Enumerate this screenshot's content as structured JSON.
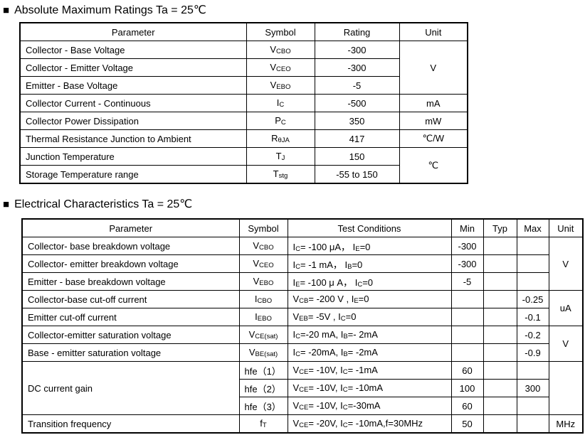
{
  "colors": {
    "background": "#ffffff",
    "text": "#000000",
    "table_border": "#000000"
  },
  "sections": [
    {
      "bullet": "■",
      "title": "Absolute Maximum Ratings Ta = 25℃",
      "table": {
        "columns": [
          "Parameter",
          "Symbol",
          "Rating",
          "Unit"
        ],
        "rows": [
          [
            {
              "text": "Collector - Base Voltage",
              "align": "left"
            },
            {
              "text": "V{CBO}"
            },
            {
              "text": "-300"
            },
            {
              "text": "V",
              "rowspan": 3
            }
          ],
          [
            {
              "text": "Collector - Emitter Voltage",
              "align": "left"
            },
            {
              "text": "V{CEO}"
            },
            {
              "text": "-300"
            }
          ],
          [
            {
              "text": "Emitter - Base Voltage",
              "align": "left"
            },
            {
              "text": "V{EBO}"
            },
            {
              "text": "-5"
            }
          ],
          [
            {
              "text": "Collector Current  - Continuous",
              "align": "left"
            },
            {
              "text": "I{C}"
            },
            {
              "text": "-500"
            },
            {
              "text": "mA"
            }
          ],
          [
            {
              "text": "Collector Power Dissipation",
              "align": "left"
            },
            {
              "text": "P{C}"
            },
            {
              "text": "350"
            },
            {
              "text": "mW"
            }
          ],
          [
            {
              "text": "Thermal Resistance Junction to Ambient",
              "align": "left"
            },
            {
              "text": "R{θJA}"
            },
            {
              "text": "417"
            },
            {
              "text": "℃/W"
            }
          ],
          [
            {
              "text": "Junction Temperature",
              "align": "left"
            },
            {
              "text": "T{J}"
            },
            {
              "text": "150"
            },
            {
              "text": "℃",
              "rowspan": 2
            }
          ],
          [
            {
              "text": "Storage Temperature range",
              "align": "left"
            },
            {
              "text": "T{stg}"
            },
            {
              "text": "-55 to 150"
            }
          ]
        ]
      }
    },
    {
      "bullet": "■",
      "title": "Electrical Characteristics Ta = 25℃",
      "table": {
        "columns": [
          "Parameter",
          "Symbol",
          "Test Conditions",
          "Min",
          "Typ",
          "Max",
          "Unit"
        ],
        "rows": [
          [
            {
              "text": "Collector- base breakdown voltage",
              "align": "left"
            },
            {
              "text": "V{CBO}"
            },
            {
              "text": "I{C}= -100 μA， I{E}=0",
              "align": "left"
            },
            {
              "text": "-300"
            },
            {
              "text": ""
            },
            {
              "text": ""
            },
            {
              "text": "V",
              "rowspan": 3
            }
          ],
          [
            {
              "text": "Collector- emitter breakdown voltage",
              "align": "left"
            },
            {
              "text": "V{CEO}"
            },
            {
              "text": "I{C}= -1 mA， I{B}=0",
              "align": "left"
            },
            {
              "text": "-300"
            },
            {
              "text": ""
            },
            {
              "text": ""
            }
          ],
          [
            {
              "text": "Emitter - base breakdown voltage",
              "align": "left"
            },
            {
              "text": "V{EBO}"
            },
            {
              "text": "I{E}= -100 μ A， I{C}=0",
              "align": "left"
            },
            {
              "text": "-5"
            },
            {
              "text": ""
            },
            {
              "text": ""
            }
          ],
          [
            {
              "text": "Collector-base cut-off current",
              "align": "left"
            },
            {
              "text": "I{CBO}"
            },
            {
              "text": "V{CB}= -200 V , I{E}=0",
              "align": "left"
            },
            {
              "text": ""
            },
            {
              "text": ""
            },
            {
              "text": "-0.25"
            },
            {
              "text": "uA",
              "rowspan": 2
            }
          ],
          [
            {
              "text": "Emitter cut-off current",
              "align": "left"
            },
            {
              "text": "I{EBO}"
            },
            {
              "text": "V{EB}= -5V , I{C}=0",
              "align": "left"
            },
            {
              "text": ""
            },
            {
              "text": ""
            },
            {
              "text": "-0.1"
            }
          ],
          [
            {
              "text": "Collector-emitter saturation voltage",
              "align": "left"
            },
            {
              "text": "V{CE(sat)}"
            },
            {
              "text": "I{C}=-20 mA, I{B}=- 2mA",
              "align": "left"
            },
            {
              "text": ""
            },
            {
              "text": ""
            },
            {
              "text": "-0.2"
            },
            {
              "text": "V",
              "rowspan": 2
            }
          ],
          [
            {
              "text": "Base - emitter saturation voltage",
              "align": "left"
            },
            {
              "text": "V{BE(sat)}"
            },
            {
              "text": "I{C}= -20mA, I{B}= -2mA",
              "align": "left"
            },
            {
              "text": ""
            },
            {
              "text": ""
            },
            {
              "text": "-0.9"
            }
          ],
          [
            {
              "text": "DC current gain",
              "align": "left",
              "rowspan": 3
            },
            {
              "text": "hfe（1）",
              "align": "left"
            },
            {
              "text": "V{CE}= -10V, I{C}= -1mA",
              "align": "left"
            },
            {
              "text": "60"
            },
            {
              "text": ""
            },
            {
              "text": ""
            },
            {
              "text": "",
              "rowspan": 3
            }
          ],
          [
            {
              "text": "hfe（2）",
              "align": "left"
            },
            {
              "text": "V{CE}= -10V, I{C}= -10mA",
              "align": "left"
            },
            {
              "text": "100"
            },
            {
              "text": ""
            },
            {
              "text": "300"
            }
          ],
          [
            {
              "text": "hfe（3）",
              "align": "left"
            },
            {
              "text": "V{CE}= -10V, I{C}=-30mA",
              "align": "left"
            },
            {
              "text": "60"
            },
            {
              "text": ""
            },
            {
              "text": ""
            }
          ],
          [
            {
              "text": "Transition frequency",
              "align": "left"
            },
            {
              "text": "f{T}"
            },
            {
              "text": "V{CE}= -20V, I{C}= -10mA,f=30MHz",
              "align": "left"
            },
            {
              "text": "50"
            },
            {
              "text": ""
            },
            {
              "text": ""
            },
            {
              "text": "MHz"
            }
          ]
        ]
      }
    }
  ]
}
